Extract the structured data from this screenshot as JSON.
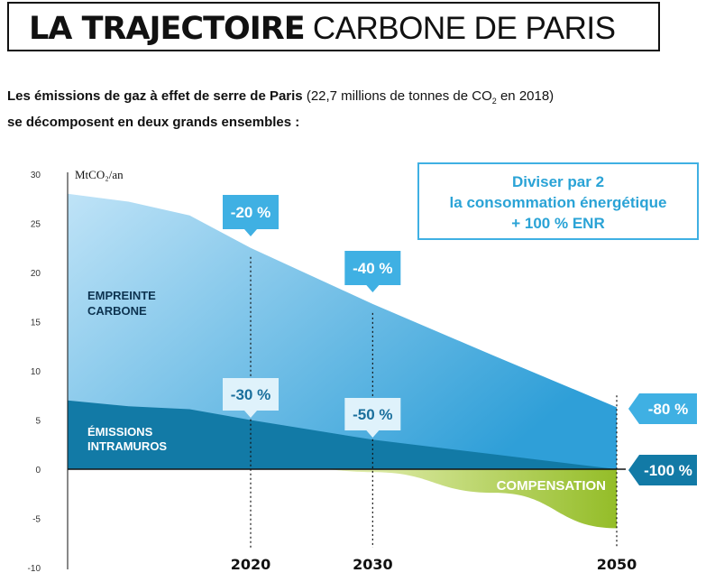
{
  "title": {
    "bold": "LA TRAJECTOIRE",
    "light": "CARBONE DE PARIS"
  },
  "subtitle": {
    "line1_bold": "Les émissions de gaz à effet de serre de Paris",
    "line1_rest": "(22,7 millions de tonnes de CO",
    "line1_sub": "2",
    "line1_end": " en 2018)",
    "line2": "se décomposent en deux grands ensembles :"
  },
  "colors": {
    "empreinte_top": "#bfe3f7",
    "empreinte_bottom": "#2f9fd8",
    "intramuros": "#127aa6",
    "compensation": "#a7c63a",
    "badge": "#3fb0e3",
    "badge_light": "#dff2fb",
    "goal_border": "#3fb0e3"
  },
  "chart_data": {
    "type": "area",
    "title": "LA TRAJECTOIRE CARBONE DE PARIS",
    "ylabel": "MtCO₂/an",
    "ylim": [
      -10,
      30
    ],
    "yticks": [
      "30",
      "25",
      "20",
      "15",
      "10",
      "5",
      "0",
      "-5",
      "-10"
    ],
    "xlim": [
      2005,
      2050
    ],
    "xticks": [
      "2020",
      "2030",
      "2050"
    ],
    "series": [
      {
        "name": "EMPREINTE CARBONE",
        "x": [
          2005,
          2010,
          2015,
          2020,
          2030,
          2040,
          2050
        ],
        "values": [
          28,
          27.2,
          25.8,
          22.5,
          16.8,
          11.5,
          6.3
        ]
      },
      {
        "name": "ÉMISSIONS INTRAMUROS",
        "x": [
          2005,
          2010,
          2015,
          2020,
          2030,
          2040,
          2050
        ],
        "values": [
          7,
          6.4,
          6.1,
          5.0,
          3.0,
          1.5,
          0
        ]
      },
      {
        "name": "COMPENSATION",
        "x": [
          2025,
          2030,
          2040,
          2050
        ],
        "values": [
          0,
          -0.3,
          -2.4,
          -6
        ]
      }
    ],
    "annotations": {
      "empreinte": [
        "-20 %",
        "-40 %",
        "-80 %"
      ],
      "intramuros": [
        "-30 %",
        "-50 %",
        "-100 %"
      ],
      "goal": [
        "Diviser par 2",
        "la consommation énergétique",
        "+ 100 % ENR"
      ],
      "region_empreinte": [
        "EMPREINTE",
        "CARBONE"
      ],
      "region_intramuros": [
        "ÉMISSIONS",
        "INTRAMUROS"
      ],
      "region_compensation": "COMPENSATION"
    }
  }
}
